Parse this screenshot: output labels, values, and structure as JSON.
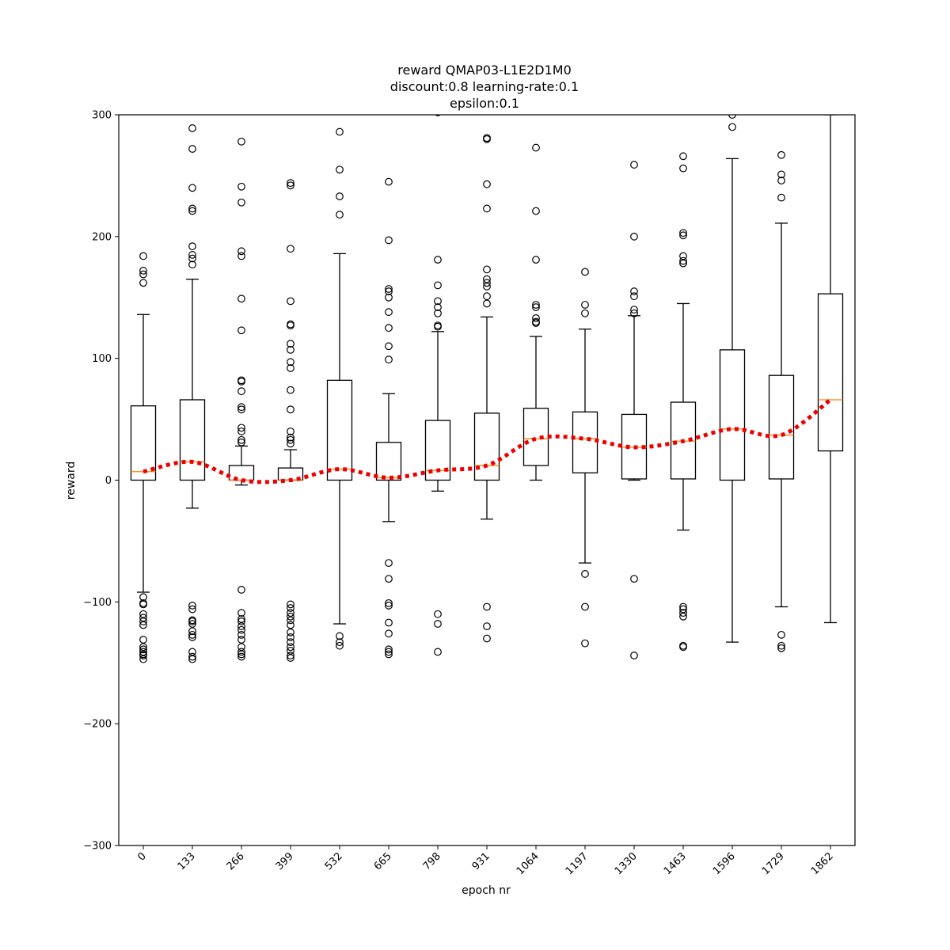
{
  "chart_data": {
    "type": "box",
    "title_lines": [
      "reward QMAP03-L1E2D1M0",
      "discount:0.8 learning-rate:0.1",
      "epsilon:0.1"
    ],
    "xlabel": "epoch nr",
    "ylabel": "reward",
    "ylim": [
      -300,
      300
    ],
    "y_ticks": [
      -300,
      -200,
      -100,
      0,
      100,
      200,
      300
    ],
    "categories": [
      "0",
      "133",
      "266",
      "399",
      "532",
      "665",
      "798",
      "931",
      "1064",
      "1197",
      "1330",
      "1463",
      "1596",
      "1729",
      "1862"
    ],
    "boxes": [
      {
        "q1": 0,
        "median": 7,
        "q3": 61,
        "whisker_low": -92,
        "whisker_high": 136,
        "outliers": [
          184,
          172,
          169,
          162,
          -96,
          -101,
          -102,
          -110,
          -113,
          -116,
          -119,
          -131,
          -137,
          -139,
          -141,
          -143,
          -144,
          -147
        ]
      },
      {
        "q1": 0,
        "median": 15,
        "q3": 66,
        "whisker_low": -23,
        "whisker_high": 165,
        "outliers": [
          289,
          272,
          240,
          223,
          221,
          192,
          185,
          182,
          177,
          -103,
          -106,
          -115,
          -116,
          -118,
          -124,
          -127,
          -129,
          -141,
          -145,
          -147
        ]
      },
      {
        "q1": 0,
        "median": 0,
        "q3": 12,
        "whisker_low": -4,
        "whisker_high": 28,
        "outliers": [
          278,
          241,
          228,
          188,
          184,
          149,
          123,
          82,
          81,
          73,
          60,
          58,
          43,
          40,
          33,
          31,
          -90,
          -109,
          -114,
          -116,
          -120,
          -123,
          -127,
          -131,
          -137,
          -141,
          -143,
          -145
        ]
      },
      {
        "q1": 0,
        "median": 0,
        "q3": 10,
        "whisker_low": 0,
        "whisker_high": 25,
        "outliers": [
          244,
          242,
          190,
          147,
          128,
          127,
          112,
          107,
          97,
          92,
          74,
          58,
          40,
          35,
          33,
          30,
          -102,
          -105,
          -109,
          -112,
          -115,
          -119,
          -125,
          -129,
          -133,
          -137,
          -140,
          -144,
          -146
        ]
      },
      {
        "q1": 0,
        "median": 9,
        "q3": 82,
        "whisker_low": -118,
        "whisker_high": 186,
        "outliers": [
          286,
          255,
          233,
          218,
          -128,
          -133,
          -136
        ]
      },
      {
        "q1": 0,
        "median": 2,
        "q3": 31,
        "whisker_low": -34,
        "whisker_high": 71,
        "outliers": [
          245,
          197,
          157,
          155,
          150,
          138,
          125,
          110,
          99,
          -68,
          -81,
          -101,
          -103,
          -117,
          -126,
          -139,
          -141,
          -143
        ]
      },
      {
        "q1": 0,
        "median": 8,
        "q3": 49,
        "whisker_low": -9,
        "whisker_high": 122,
        "outliers": [
          302,
          181,
          160,
          147,
          142,
          137,
          127,
          126,
          -110,
          -118,
          -141
        ]
      },
      {
        "q1": 0,
        "median": 12,
        "q3": 55,
        "whisker_low": -32,
        "whisker_high": 134,
        "outliers": [
          281,
          280,
          243,
          223,
          173,
          165,
          162,
          159,
          151,
          145,
          -104,
          -120,
          -130
        ]
      },
      {
        "q1": 12,
        "median": 34,
        "q3": 59,
        "whisker_low": 0,
        "whisker_high": 118,
        "outliers": [
          273,
          221,
          181,
          144,
          142,
          133,
          130,
          129
        ]
      },
      {
        "q1": 6,
        "median": 34,
        "q3": 56,
        "whisker_low": -68,
        "whisker_high": 124,
        "outliers": [
          171,
          144,
          137,
          -77,
          -104,
          -134
        ]
      },
      {
        "q1": 1,
        "median": 27,
        "q3": 54,
        "whisker_low": 0,
        "whisker_high": 135,
        "outliers": [
          259,
          200,
          155,
          151,
          140,
          137,
          -81,
          -144
        ]
      },
      {
        "q1": 1,
        "median": 32,
        "q3": 64,
        "whisker_low": -41,
        "whisker_high": 145,
        "outliers": [
          266,
          256,
          203,
          201,
          184,
          180,
          178,
          -104,
          -106,
          -109,
          -112,
          -136,
          -137
        ]
      },
      {
        "q1": 0,
        "median": 42,
        "q3": 107,
        "whisker_low": -133,
        "whisker_high": 264,
        "outliers": [
          300,
          290
        ]
      },
      {
        "q1": 1,
        "median": 37,
        "q3": 86,
        "whisker_low": -104,
        "whisker_high": 211,
        "outliers": [
          267,
          251,
          246,
          232,
          -127,
          -136,
          -138
        ]
      },
      {
        "q1": 24,
        "median": 66,
        "q3": 153,
        "whisker_low": -117,
        "whisker_high": 300,
        "outliers": []
      }
    ],
    "trend_line": {
      "values": [
        7,
        15,
        0,
        0,
        9,
        2,
        8,
        12,
        34,
        34,
        27,
        32,
        42,
        37,
        66
      ],
      "color": "#ee0000",
      "style": "dotted"
    },
    "colors": {
      "box": "#000000",
      "median": "#ff7f0e",
      "trend": "#ee0000"
    }
  }
}
